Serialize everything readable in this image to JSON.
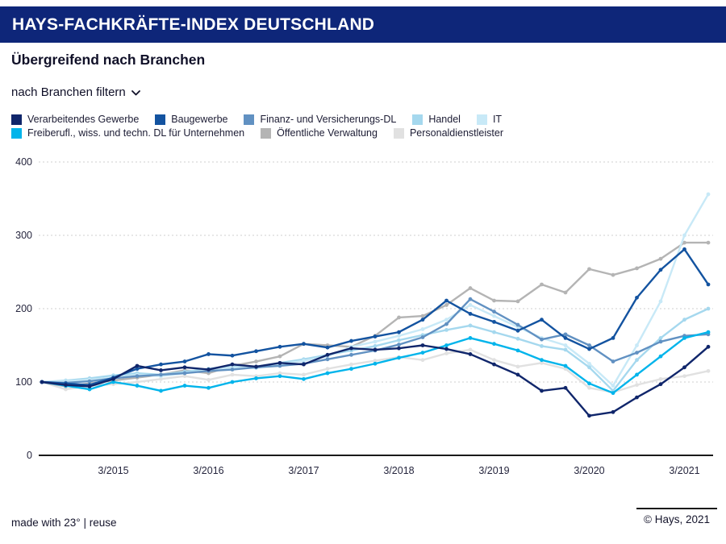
{
  "header": {
    "title": "HAYS-FACHKRÄFTE-INDEX DEUTSCHLAND"
  },
  "subtitle": "Übergreifend nach Branchen",
  "filter": {
    "label": "nach Branchen filtern"
  },
  "footer": {
    "left": "made with 23° | reuse",
    "right": "© Hays, 2021"
  },
  "colors": {
    "header_bg": "#0e2679",
    "grid": "#cfcfcf",
    "axis": "#1a1a1a",
    "text": "#16162e"
  },
  "chart_data": {
    "type": "line",
    "title": "Übergreifend nach Branchen",
    "xlabel": "",
    "ylabel": "",
    "ylim": [
      0,
      400
    ],
    "yticks": [
      0,
      100,
      200,
      300,
      400
    ],
    "grid": "horizontal dashed",
    "legend_position": "top",
    "x": [
      "6/2014",
      "9/2014",
      "12/2014",
      "3/2015",
      "6/2015",
      "9/2015",
      "12/2015",
      "3/2016",
      "6/2016",
      "9/2016",
      "12/2016",
      "3/2017",
      "6/2017",
      "9/2017",
      "12/2017",
      "3/2018",
      "6/2018",
      "9/2018",
      "12/2018",
      "3/2019",
      "6/2019",
      "9/2019",
      "12/2019",
      "3/2020",
      "6/2020",
      "9/2020",
      "12/2020",
      "3/2021",
      "6/2021"
    ],
    "tick_indices": [
      3,
      7,
      11,
      15,
      19,
      23,
      27
    ],
    "series": [
      {
        "name": "Verarbeitendes Gewerbe",
        "color": "#10266b",
        "values": [
          100,
          96,
          94,
          104,
          122,
          116,
          120,
          117,
          124,
          121,
          126,
          124,
          137,
          146,
          144,
          146,
          150,
          145,
          138,
          124,
          110,
          88,
          92,
          54,
          59,
          79,
          97,
          120,
          148
        ]
      },
      {
        "name": "Baugewerbe",
        "color": "#1353a0",
        "values": [
          100,
          98,
          96,
          106,
          118,
          124,
          128,
          138,
          136,
          142,
          148,
          152,
          147,
          156,
          162,
          168,
          185,
          211,
          193,
          182,
          170,
          185,
          160,
          145,
          160,
          215,
          253,
          281,
          233
        ]
      },
      {
        "name": "Finanz- und Versicherungs-DL",
        "color": "#6191c2",
        "values": [
          100,
          99,
          101,
          105,
          108,
          110,
          112,
          115,
          117,
          120,
          122,
          125,
          131,
          137,
          143,
          151,
          161,
          179,
          213,
          196,
          178,
          158,
          165,
          150,
          128,
          140,
          155,
          163,
          165
        ]
      },
      {
        "name": "Handel",
        "color": "#a5d8ee",
        "values": [
          100,
          102,
          105,
          109,
          112,
          110,
          114,
          118,
          122,
          121,
          126,
          131,
          137,
          143,
          149,
          157,
          164,
          171,
          177,
          168,
          159,
          149,
          144,
          120,
          88,
          130,
          160,
          185,
          200
        ]
      },
      {
        "name": "IT",
        "color": "#c8e9f7",
        "values": [
          100,
          101,
          103,
          106,
          110,
          108,
          112,
          116,
          120,
          119,
          124,
          129,
          135,
          148,
          155,
          163,
          172,
          185,
          205,
          190,
          175,
          160,
          150,
          125,
          95,
          150,
          210,
          300,
          356
        ]
      },
      {
        "name": "Freiberufl., wiss. und techn. DL für Unternehmen",
        "color": "#00b4eb",
        "values": [
          100,
          95,
          90,
          100,
          95,
          88,
          95,
          92,
          100,
          105,
          108,
          104,
          112,
          118,
          125,
          133,
          140,
          150,
          160,
          152,
          143,
          130,
          122,
          98,
          85,
          110,
          135,
          160,
          168
        ]
      },
      {
        "name": "Öffentliche Verwaltung",
        "color": "#b4b4b4",
        "values": [
          100,
          94,
          98,
          102,
          106,
          110,
          116,
          112,
          122,
          128,
          135,
          152,
          150,
          148,
          163,
          188,
          190,
          205,
          228,
          211,
          210,
          233,
          222,
          254,
          246,
          255,
          268,
          290,
          290
        ]
      },
      {
        "name": "Personaldienstleister",
        "color": "#e1e1e1",
        "values": [
          100,
          90,
          95,
          97,
          100,
          104,
          108,
          103,
          110,
          108,
          112,
          110,
          118,
          124,
          129,
          134,
          130,
          139,
          144,
          130,
          121,
          126,
          118,
          92,
          86,
          96,
          104,
          108,
          115
        ]
      }
    ],
    "draw_order": [
      7,
      6,
      3,
      4,
      2,
      5,
      1,
      0
    ]
  }
}
